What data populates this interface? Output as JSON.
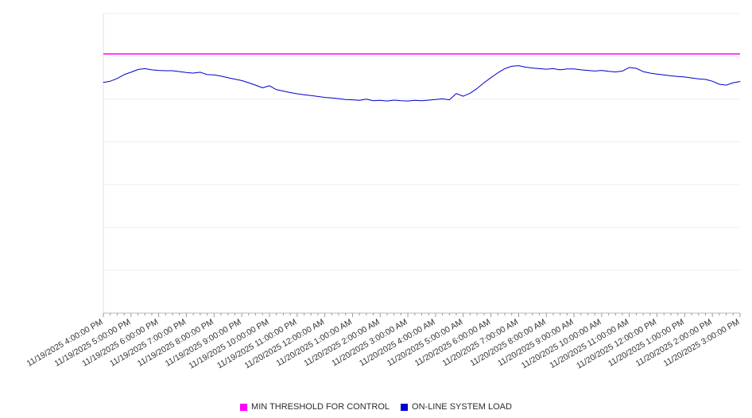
{
  "chart_data": {
    "type": "line",
    "title": "",
    "xlabel": "",
    "ylabel": "",
    "grid": true,
    "legend_position": "bottom",
    "ylim": [
      0,
      100
    ],
    "y_gridline_divisions": 7,
    "y_tick_labels_visible": false,
    "x_points_per_hour": 4,
    "x_tick_labels": [
      "11/19/2025 4:00:00 PM",
      "11/19/2025 5:00:00 PM",
      "11/19/2025 6:00:00 PM",
      "11/19/2025 7:00:00 PM",
      "11/19/2025 8:00:00 PM",
      "11/19/2025 9:00:00 PM",
      "11/19/2025 10:00:00 PM",
      "11/19/2025 11:00:00 PM",
      "11/20/2025 12:00:00 AM",
      "11/20/2025 1:00:00 AM",
      "11/20/2025 2:00:00 AM",
      "11/20/2025 3:00:00 AM",
      "11/20/2025 4:00:00 AM",
      "11/20/2025 5:00:00 AM",
      "11/20/2025 6:00:00 AM",
      "11/20/2025 7:00:00 AM",
      "11/20/2025 8:00:00 AM",
      "11/20/2025 9:00:00 AM",
      "11/20/2025 10:00:00 AM",
      "11/20/2025 11:00:00 AM",
      "11/20/2025 12:00:00 PM",
      "11/20/2025 1:00:00 PM",
      "11/20/2025 2:00:00 PM",
      "11/20/2025 3:00:00 PM"
    ],
    "series": [
      {
        "name": "MIN THRESHOLD FOR CONTROL",
        "type": "threshold",
        "color": "#ff00ff",
        "value": 86.5
      },
      {
        "name": "ON-LINE SYSTEM LOAD",
        "type": "line",
        "color": "#0000cd",
        "values": [
          77.0,
          77.4,
          78.3,
          79.6,
          80.4,
          81.3,
          81.6,
          81.2,
          81.0,
          80.9,
          80.9,
          80.6,
          80.3,
          80.1,
          80.4,
          79.6,
          79.5,
          79.1,
          78.6,
          78.1,
          77.6,
          76.9,
          76.1,
          75.2,
          75.9,
          74.6,
          74.1,
          73.6,
          73.2,
          72.9,
          72.6,
          72.3,
          72.0,
          71.8,
          71.6,
          71.3,
          71.2,
          71.0,
          71.4,
          70.9,
          71.0,
          70.8,
          71.1,
          70.9,
          70.8,
          71.0,
          70.9,
          71.1,
          71.3,
          71.5,
          71.2,
          73.3,
          72.4,
          73.4,
          75.0,
          76.9,
          78.6,
          80.2,
          81.6,
          82.4,
          82.6,
          82.1,
          81.8,
          81.6,
          81.4,
          81.6,
          81.2,
          81.5,
          81.5,
          81.2,
          81.0,
          80.8,
          81.0,
          80.7,
          80.5,
          80.8,
          82.0,
          81.7,
          80.6,
          80.1,
          79.8,
          79.5,
          79.2,
          79.0,
          78.8,
          78.5,
          78.2,
          78.0,
          77.4,
          76.4,
          76.1,
          76.9,
          77.3
        ]
      }
    ]
  }
}
